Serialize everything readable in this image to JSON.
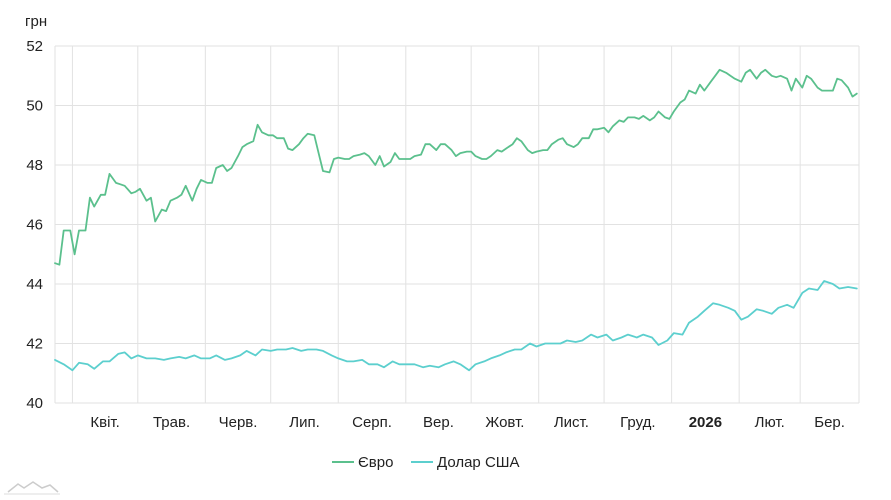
{
  "chart_data": {
    "type": "line",
    "ylabel": "грн",
    "ylim": [
      40,
      52
    ],
    "yticks": [
      40,
      42,
      44,
      46,
      48,
      50,
      52
    ],
    "x_range": [
      "2025-03-24",
      "2026-03-28"
    ],
    "months": [
      {
        "label": "Квіт.",
        "date": "2025-04-01",
        "bold": false
      },
      {
        "label": "Трав.",
        "date": "2025-05-01",
        "bold": false
      },
      {
        "label": "Черв.",
        "date": "2025-06-01",
        "bold": false
      },
      {
        "label": "Лип.",
        "date": "2025-07-01",
        "bold": false
      },
      {
        "label": "Серп.",
        "date": "2025-08-01",
        "bold": false
      },
      {
        "label": "Вер.",
        "date": "2025-09-01",
        "bold": false
      },
      {
        "label": "Жовт.",
        "date": "2025-10-01",
        "bold": false
      },
      {
        "label": "Лист.",
        "date": "2025-11-01",
        "bold": false
      },
      {
        "label": "Груд.",
        "date": "2025-12-01",
        "bold": false
      },
      {
        "label": "2026",
        "date": "2026-01-01",
        "bold": true
      },
      {
        "label": "Лют.",
        "date": "2026-02-01",
        "bold": false
      },
      {
        "label": "Бер.",
        "date": "2026-03-01",
        "bold": false
      }
    ],
    "legend_position": "bottom-center",
    "grid": true,
    "series": [
      {
        "name": "Євро",
        "color": "#5bc08d",
        "points": [
          [
            "2025-03-24",
            44.7
          ],
          [
            "2025-03-26",
            44.65
          ],
          [
            "2025-03-28",
            45.8
          ],
          [
            "2025-03-31",
            45.8
          ],
          [
            "2025-04-02",
            45.0
          ],
          [
            "2025-04-04",
            45.8
          ],
          [
            "2025-04-07",
            45.8
          ],
          [
            "2025-04-09",
            46.9
          ],
          [
            "2025-04-11",
            46.6
          ],
          [
            "2025-04-14",
            47.0
          ],
          [
            "2025-04-16",
            47.0
          ],
          [
            "2025-04-18",
            47.7
          ],
          [
            "2025-04-21",
            47.4
          ],
          [
            "2025-04-23",
            47.35
          ],
          [
            "2025-04-25",
            47.3
          ],
          [
            "2025-04-28",
            47.05
          ],
          [
            "2025-04-30",
            47.1
          ],
          [
            "2025-05-02",
            47.2
          ],
          [
            "2025-05-05",
            46.8
          ],
          [
            "2025-05-07",
            46.9
          ],
          [
            "2025-05-09",
            46.1
          ],
          [
            "2025-05-12",
            46.5
          ],
          [
            "2025-05-14",
            46.45
          ],
          [
            "2025-05-16",
            46.8
          ],
          [
            "2025-05-19",
            46.9
          ],
          [
            "2025-05-21",
            47.0
          ],
          [
            "2025-05-23",
            47.3
          ],
          [
            "2025-05-26",
            46.8
          ],
          [
            "2025-05-28",
            47.2
          ],
          [
            "2025-05-30",
            47.5
          ],
          [
            "2025-06-02",
            47.4
          ],
          [
            "2025-06-04",
            47.4
          ],
          [
            "2025-06-06",
            47.9
          ],
          [
            "2025-06-09",
            48.0
          ],
          [
            "2025-06-11",
            47.8
          ],
          [
            "2025-06-13",
            47.9
          ],
          [
            "2025-06-16",
            48.3
          ],
          [
            "2025-06-18",
            48.6
          ],
          [
            "2025-06-20",
            48.7
          ],
          [
            "2025-06-23",
            48.8
          ],
          [
            "2025-06-25",
            49.35
          ],
          [
            "2025-06-27",
            49.1
          ],
          [
            "2025-06-30",
            49.0
          ],
          [
            "2025-07-02",
            49.0
          ],
          [
            "2025-07-04",
            48.9
          ],
          [
            "2025-07-07",
            48.9
          ],
          [
            "2025-07-09",
            48.55
          ],
          [
            "2025-07-11",
            48.5
          ],
          [
            "2025-07-14",
            48.7
          ],
          [
            "2025-07-16",
            48.9
          ],
          [
            "2025-07-18",
            49.05
          ],
          [
            "2025-07-21",
            49.0
          ],
          [
            "2025-07-23",
            48.4
          ],
          [
            "2025-07-25",
            47.8
          ],
          [
            "2025-07-28",
            47.75
          ],
          [
            "2025-07-30",
            48.2
          ],
          [
            "2025-08-01",
            48.25
          ],
          [
            "2025-08-04",
            48.2
          ],
          [
            "2025-08-06",
            48.2
          ],
          [
            "2025-08-08",
            48.3
          ],
          [
            "2025-08-11",
            48.35
          ],
          [
            "2025-08-13",
            48.4
          ],
          [
            "2025-08-15",
            48.3
          ],
          [
            "2025-08-18",
            48.0
          ],
          [
            "2025-08-20",
            48.3
          ],
          [
            "2025-08-22",
            47.95
          ],
          [
            "2025-08-25",
            48.1
          ],
          [
            "2025-08-27",
            48.4
          ],
          [
            "2025-08-29",
            48.2
          ],
          [
            "2025-09-01",
            48.2
          ],
          [
            "2025-09-03",
            48.2
          ],
          [
            "2025-09-05",
            48.3
          ],
          [
            "2025-09-08",
            48.35
          ],
          [
            "2025-09-10",
            48.7
          ],
          [
            "2025-09-12",
            48.7
          ],
          [
            "2025-09-15",
            48.5
          ],
          [
            "2025-09-17",
            48.7
          ],
          [
            "2025-09-19",
            48.7
          ],
          [
            "2025-09-22",
            48.5
          ],
          [
            "2025-09-24",
            48.3
          ],
          [
            "2025-09-26",
            48.4
          ],
          [
            "2025-09-29",
            48.45
          ],
          [
            "2025-10-01",
            48.45
          ],
          [
            "2025-10-03",
            48.3
          ],
          [
            "2025-10-06",
            48.2
          ],
          [
            "2025-10-08",
            48.2
          ],
          [
            "2025-10-10",
            48.3
          ],
          [
            "2025-10-13",
            48.5
          ],
          [
            "2025-10-15",
            48.45
          ],
          [
            "2025-10-17",
            48.55
          ],
          [
            "2025-10-20",
            48.7
          ],
          [
            "2025-10-22",
            48.9
          ],
          [
            "2025-10-24",
            48.8
          ],
          [
            "2025-10-27",
            48.5
          ],
          [
            "2025-10-29",
            48.4
          ],
          [
            "2025-10-31",
            48.45
          ],
          [
            "2025-11-03",
            48.5
          ],
          [
            "2025-11-05",
            48.5
          ],
          [
            "2025-11-07",
            48.7
          ],
          [
            "2025-11-10",
            48.85
          ],
          [
            "2025-11-12",
            48.9
          ],
          [
            "2025-11-14",
            48.7
          ],
          [
            "2025-11-17",
            48.6
          ],
          [
            "2025-11-19",
            48.7
          ],
          [
            "2025-11-21",
            48.9
          ],
          [
            "2025-11-24",
            48.9
          ],
          [
            "2025-11-26",
            49.2
          ],
          [
            "2025-11-28",
            49.2
          ],
          [
            "2025-12-01",
            49.25
          ],
          [
            "2025-12-03",
            49.1
          ],
          [
            "2025-12-05",
            49.3
          ],
          [
            "2025-12-08",
            49.5
          ],
          [
            "2025-12-10",
            49.45
          ],
          [
            "2025-12-12",
            49.6
          ],
          [
            "2025-12-15",
            49.6
          ],
          [
            "2025-12-17",
            49.55
          ],
          [
            "2025-12-19",
            49.65
          ],
          [
            "2025-12-22",
            49.5
          ],
          [
            "2025-12-24",
            49.6
          ],
          [
            "2025-12-26",
            49.8
          ],
          [
            "2025-12-29",
            49.6
          ],
          [
            "2025-12-31",
            49.55
          ],
          [
            "2026-01-02",
            49.8
          ],
          [
            "2026-01-05",
            50.1
          ],
          [
            "2026-01-07",
            50.2
          ],
          [
            "2026-01-09",
            50.5
          ],
          [
            "2026-01-12",
            50.4
          ],
          [
            "2026-01-14",
            50.7
          ],
          [
            "2026-01-16",
            50.5
          ],
          [
            "2026-01-19",
            50.8
          ],
          [
            "2026-01-21",
            51.0
          ],
          [
            "2026-01-23",
            51.2
          ],
          [
            "2026-01-26",
            51.1
          ],
          [
            "2026-01-28",
            51.0
          ],
          [
            "2026-01-30",
            50.9
          ],
          [
            "2026-02-02",
            50.8
          ],
          [
            "2026-02-04",
            51.1
          ],
          [
            "2026-02-06",
            51.2
          ],
          [
            "2026-02-09",
            50.9
          ],
          [
            "2026-02-11",
            51.1
          ],
          [
            "2026-02-13",
            51.2
          ],
          [
            "2026-02-16",
            51.0
          ],
          [
            "2026-02-18",
            50.95
          ],
          [
            "2026-02-20",
            51.0
          ],
          [
            "2026-02-23",
            50.9
          ],
          [
            "2026-02-25",
            50.5
          ],
          [
            "2026-02-27",
            50.9
          ],
          [
            "2026-03-02",
            50.6
          ],
          [
            "2026-03-04",
            51.0
          ],
          [
            "2026-03-06",
            50.9
          ],
          [
            "2026-03-09",
            50.6
          ],
          [
            "2026-03-11",
            50.5
          ],
          [
            "2026-03-13",
            50.5
          ],
          [
            "2026-03-16",
            50.5
          ],
          [
            "2026-03-18",
            50.9
          ],
          [
            "2026-03-20",
            50.85
          ],
          [
            "2026-03-23",
            50.6
          ],
          [
            "2026-03-25",
            50.3
          ],
          [
            "2026-03-27",
            50.4
          ]
        ]
      },
      {
        "name": "Долар США",
        "color": "#5ccfce",
        "points": [
          [
            "2025-03-24",
            41.45
          ],
          [
            "2025-03-28",
            41.3
          ],
          [
            "2025-04-01",
            41.1
          ],
          [
            "2025-04-04",
            41.35
          ],
          [
            "2025-04-08",
            41.3
          ],
          [
            "2025-04-11",
            41.15
          ],
          [
            "2025-04-15",
            41.4
          ],
          [
            "2025-04-18",
            41.4
          ],
          [
            "2025-04-22",
            41.65
          ],
          [
            "2025-04-25",
            41.7
          ],
          [
            "2025-04-28",
            41.5
          ],
          [
            "2025-05-01",
            41.6
          ],
          [
            "2025-05-05",
            41.5
          ],
          [
            "2025-05-09",
            41.5
          ],
          [
            "2025-05-13",
            41.45
          ],
          [
            "2025-05-16",
            41.5
          ],
          [
            "2025-05-20",
            41.55
          ],
          [
            "2025-05-23",
            41.5
          ],
          [
            "2025-05-27",
            41.6
          ],
          [
            "2025-05-30",
            41.5
          ],
          [
            "2025-06-03",
            41.5
          ],
          [
            "2025-06-06",
            41.6
          ],
          [
            "2025-06-10",
            41.45
          ],
          [
            "2025-06-13",
            41.5
          ],
          [
            "2025-06-17",
            41.6
          ],
          [
            "2025-06-20",
            41.75
          ],
          [
            "2025-06-24",
            41.6
          ],
          [
            "2025-06-27",
            41.8
          ],
          [
            "2025-07-01",
            41.75
          ],
          [
            "2025-07-04",
            41.8
          ],
          [
            "2025-07-08",
            41.8
          ],
          [
            "2025-07-11",
            41.85
          ],
          [
            "2025-07-15",
            41.75
          ],
          [
            "2025-07-18",
            41.8
          ],
          [
            "2025-07-22",
            41.8
          ],
          [
            "2025-07-25",
            41.75
          ],
          [
            "2025-07-29",
            41.6
          ],
          [
            "2025-08-01",
            41.5
          ],
          [
            "2025-08-05",
            41.4
          ],
          [
            "2025-08-08",
            41.4
          ],
          [
            "2025-08-12",
            41.45
          ],
          [
            "2025-08-15",
            41.3
          ],
          [
            "2025-08-19",
            41.3
          ],
          [
            "2025-08-22",
            41.2
          ],
          [
            "2025-08-26",
            41.4
          ],
          [
            "2025-08-29",
            41.3
          ],
          [
            "2025-09-02",
            41.3
          ],
          [
            "2025-09-05",
            41.3
          ],
          [
            "2025-09-09",
            41.2
          ],
          [
            "2025-09-12",
            41.25
          ],
          [
            "2025-09-16",
            41.2
          ],
          [
            "2025-09-19",
            41.3
          ],
          [
            "2025-09-23",
            41.4
          ],
          [
            "2025-09-26",
            41.3
          ],
          [
            "2025-09-30",
            41.1
          ],
          [
            "2025-10-03",
            41.3
          ],
          [
            "2025-10-07",
            41.4
          ],
          [
            "2025-10-10",
            41.5
          ],
          [
            "2025-10-14",
            41.6
          ],
          [
            "2025-10-17",
            41.7
          ],
          [
            "2025-10-21",
            41.8
          ],
          [
            "2025-10-24",
            41.8
          ],
          [
            "2025-10-28",
            42.0
          ],
          [
            "2025-10-31",
            41.9
          ],
          [
            "2025-11-04",
            42.0
          ],
          [
            "2025-11-07",
            42.0
          ],
          [
            "2025-11-11",
            42.0
          ],
          [
            "2025-11-14",
            42.1
          ],
          [
            "2025-11-18",
            42.05
          ],
          [
            "2025-11-21",
            42.1
          ],
          [
            "2025-11-25",
            42.3
          ],
          [
            "2025-11-28",
            42.2
          ],
          [
            "2025-12-02",
            42.3
          ],
          [
            "2025-12-05",
            42.1
          ],
          [
            "2025-12-09",
            42.2
          ],
          [
            "2025-12-12",
            42.3
          ],
          [
            "2025-12-16",
            42.2
          ],
          [
            "2025-12-19",
            42.3
          ],
          [
            "2025-12-23",
            42.2
          ],
          [
            "2025-12-26",
            41.95
          ],
          [
            "2025-12-30",
            42.1
          ],
          [
            "2026-01-02",
            42.35
          ],
          [
            "2026-01-06",
            42.3
          ],
          [
            "2026-01-09",
            42.7
          ],
          [
            "2026-01-13",
            42.9
          ],
          [
            "2026-01-16",
            43.1
          ],
          [
            "2026-01-20",
            43.35
          ],
          [
            "2026-01-23",
            43.3
          ],
          [
            "2026-01-27",
            43.2
          ],
          [
            "2026-01-30",
            43.1
          ],
          [
            "2026-02-02",
            42.8
          ],
          [
            "2026-02-05",
            42.9
          ],
          [
            "2026-02-09",
            43.15
          ],
          [
            "2026-02-12",
            43.1
          ],
          [
            "2026-02-16",
            43.0
          ],
          [
            "2026-02-19",
            43.2
          ],
          [
            "2026-02-23",
            43.3
          ],
          [
            "2026-02-26",
            43.2
          ],
          [
            "2026-03-02",
            43.7
          ],
          [
            "2026-03-05",
            43.85
          ],
          [
            "2026-03-09",
            43.8
          ],
          [
            "2026-03-12",
            44.1
          ],
          [
            "2026-03-16",
            44.0
          ],
          [
            "2026-03-19",
            43.85
          ],
          [
            "2026-03-23",
            43.9
          ],
          [
            "2026-03-27",
            43.85
          ]
        ]
      }
    ]
  }
}
